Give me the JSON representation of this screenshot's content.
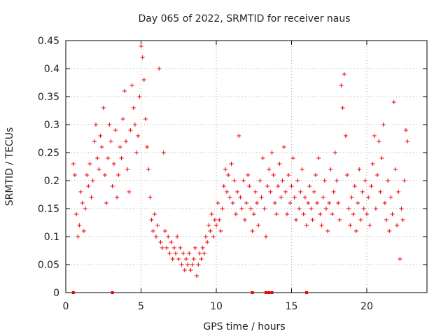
{
  "chart_data": {
    "type": "scatter",
    "title": "Day 065 of 2022, SRMTID for receiver naus",
    "xlabel": "GPS time / hours",
    "ylabel": "SRMTID / TECUs",
    "xlim": [
      0,
      24
    ],
    "ylim": [
      0,
      0.45
    ],
    "x_ticks": [
      0,
      5,
      10,
      15,
      20
    ],
    "x_tick_labels": [
      "0",
      "5",
      "10",
      "15",
      "20"
    ],
    "y_ticks": [
      0,
      0.05,
      0.1,
      0.15,
      0.2,
      0.25,
      0.3,
      0.35,
      0.4,
      0.45
    ],
    "y_tick_labels": [
      "0",
      "0.05",
      "0.1",
      "0.15",
      "0.2",
      "0.25",
      "0.3",
      "0.35",
      "0.4",
      "0.45"
    ],
    "grid": true,
    "marker": "+",
    "color": "#ee0000",
    "series": [
      {
        "name": "SRMTID",
        "points": [
          [
            0.5,
            0.23
          ],
          [
            0.6,
            0.21
          ],
          [
            0.7,
            0.14
          ],
          [
            0.8,
            0.1
          ],
          [
            0.9,
            0.12
          ],
          [
            1.0,
            0.18
          ],
          [
            1.1,
            0.16
          ],
          [
            1.2,
            0.11
          ],
          [
            1.3,
            0.15
          ],
          [
            1.4,
            0.21
          ],
          [
            1.5,
            0.19
          ],
          [
            1.6,
            0.23
          ],
          [
            1.7,
            0.17
          ],
          [
            1.8,
            0.2
          ],
          [
            1.9,
            0.27
          ],
          [
            2.0,
            0.3
          ],
          [
            2.1,
            0.24
          ],
          [
            2.2,
            0.22
          ],
          [
            2.3,
            0.28
          ],
          [
            2.4,
            0.26
          ],
          [
            2.5,
            0.33
          ],
          [
            2.6,
            0.21
          ],
          [
            2.7,
            0.16
          ],
          [
            2.8,
            0.24
          ],
          [
            2.9,
            0.3
          ],
          [
            3.0,
            0.27
          ],
          [
            3.1,
            0.19
          ],
          [
            3.2,
            0.23
          ],
          [
            3.3,
            0.29
          ],
          [
            3.4,
            0.17
          ],
          [
            3.5,
            0.21
          ],
          [
            3.6,
            0.26
          ],
          [
            3.7,
            0.24
          ],
          [
            3.8,
            0.31
          ],
          [
            3.9,
            0.36
          ],
          [
            4.0,
            0.27
          ],
          [
            4.1,
            0.22
          ],
          [
            4.2,
            0.18
          ],
          [
            4.3,
            0.29
          ],
          [
            4.4,
            0.37
          ],
          [
            4.5,
            0.33
          ],
          [
            4.6,
            0.3
          ],
          [
            4.7,
            0.25
          ],
          [
            4.8,
            0.28
          ],
          [
            4.9,
            0.35
          ],
          [
            5.0,
            0.44
          ],
          [
            5.1,
            0.42
          ],
          [
            5.2,
            0.38
          ],
          [
            5.3,
            0.31
          ],
          [
            5.4,
            0.26
          ],
          [
            5.5,
            0.22
          ],
          [
            5.6,
            0.17
          ],
          [
            5.7,
            0.13
          ],
          [
            5.8,
            0.11
          ],
          [
            5.9,
            0.14
          ],
          [
            6.0,
            0.1
          ],
          [
            6.1,
            0.12
          ],
          [
            6.2,
            0.4
          ],
          [
            6.3,
            0.09
          ],
          [
            6.4,
            0.08
          ],
          [
            6.5,
            0.25
          ],
          [
            6.6,
            0.11
          ],
          [
            6.7,
            0.08
          ],
          [
            6.8,
            0.1
          ],
          [
            6.9,
            0.07
          ],
          [
            7.0,
            0.09
          ],
          [
            7.1,
            0.06
          ],
          [
            7.2,
            0.08
          ],
          [
            7.3,
            0.07
          ],
          [
            7.4,
            0.1
          ],
          [
            7.5,
            0.06
          ],
          [
            7.6,
            0.08
          ],
          [
            7.7,
            0.05
          ],
          [
            7.8,
            0.07
          ],
          [
            7.9,
            0.04
          ],
          [
            8.0,
            0.06
          ],
          [
            8.1,
            0.05
          ],
          [
            8.2,
            0.07
          ],
          [
            8.3,
            0.04
          ],
          [
            8.4,
            0.05
          ],
          [
            8.5,
            0.06
          ],
          [
            8.6,
            0.08
          ],
          [
            8.7,
            0.03
          ],
          [
            8.8,
            0.05
          ],
          [
            8.9,
            0.07
          ],
          [
            9.0,
            0.06
          ],
          [
            9.1,
            0.08
          ],
          [
            9.2,
            0.07
          ],
          [
            9.3,
            0.1
          ],
          [
            9.4,
            0.09
          ],
          [
            9.5,
            0.12
          ],
          [
            9.6,
            0.11
          ],
          [
            9.7,
            0.14
          ],
          [
            9.8,
            0.1
          ],
          [
            9.9,
            0.13
          ],
          [
            10.0,
            0.12
          ],
          [
            10.1,
            0.16
          ],
          [
            10.2,
            0.13
          ],
          [
            10.3,
            0.11
          ],
          [
            10.4,
            0.15
          ],
          [
            10.5,
            0.19
          ],
          [
            10.6,
            0.22
          ],
          [
            10.7,
            0.18
          ],
          [
            10.8,
            0.21
          ],
          [
            10.9,
            0.17
          ],
          [
            11.0,
            0.23
          ],
          [
            11.1,
            0.16
          ],
          [
            11.2,
            0.2
          ],
          [
            11.3,
            0.14
          ],
          [
            11.4,
            0.18
          ],
          [
            11.5,
            0.28
          ],
          [
            11.6,
            0.17
          ],
          [
            11.7,
            0.15
          ],
          [
            11.8,
            0.2
          ],
          [
            11.9,
            0.13
          ],
          [
            12.0,
            0.16
          ],
          [
            12.1,
            0.21
          ],
          [
            12.2,
            0.19
          ],
          [
            12.3,
            0.15
          ],
          [
            12.4,
            0.11
          ],
          [
            12.5,
            0.14
          ],
          [
            12.6,
            0.18
          ],
          [
            12.7,
            0.16
          ],
          [
            12.8,
            0.12
          ],
          [
            12.9,
            0.2
          ],
          [
            13.0,
            0.17
          ],
          [
            13.1,
            0.24
          ],
          [
            13.2,
            0.15
          ],
          [
            13.3,
            0.1
          ],
          [
            13.4,
            0.19
          ],
          [
            13.5,
            0.22
          ],
          [
            13.6,
            0.18
          ],
          [
            13.7,
            0.25
          ],
          [
            13.8,
            0.21
          ],
          [
            13.9,
            0.16
          ],
          [
            14.0,
            0.14
          ],
          [
            14.1,
            0.19
          ],
          [
            14.2,
            0.23
          ],
          [
            14.3,
            0.17
          ],
          [
            14.4,
            0.2
          ],
          [
            14.5,
            0.26
          ],
          [
            14.6,
            0.18
          ],
          [
            14.7,
            0.14
          ],
          [
            14.8,
            0.21
          ],
          [
            14.9,
            0.16
          ],
          [
            15.0,
            0.19
          ],
          [
            15.1,
            0.24
          ],
          [
            15.2,
            0.17
          ],
          [
            15.3,
            0.13
          ],
          [
            15.4,
            0.2
          ],
          [
            15.5,
            0.15
          ],
          [
            15.6,
            0.18
          ],
          [
            15.7,
            0.22
          ],
          [
            15.8,
            0.14
          ],
          [
            15.9,
            0.17
          ],
          [
            16.0,
            0.12
          ],
          [
            16.1,
            0.16
          ],
          [
            16.2,
            0.19
          ],
          [
            16.3,
            0.15
          ],
          [
            16.4,
            0.13
          ],
          [
            16.5,
            0.18
          ],
          [
            16.6,
            0.21
          ],
          [
            16.7,
            0.16
          ],
          [
            16.8,
            0.24
          ],
          [
            16.9,
            0.14
          ],
          [
            17.0,
            0.12
          ],
          [
            17.1,
            0.17
          ],
          [
            17.2,
            0.2
          ],
          [
            17.3,
            0.15
          ],
          [
            17.4,
            0.11
          ],
          [
            17.5,
            0.16
          ],
          [
            17.6,
            0.22
          ],
          [
            17.7,
            0.14
          ],
          [
            17.8,
            0.18
          ],
          [
            17.9,
            0.25
          ],
          [
            18.0,
            0.2
          ],
          [
            18.1,
            0.16
          ],
          [
            18.2,
            0.13
          ],
          [
            18.3,
            0.37
          ],
          [
            18.4,
            0.33
          ],
          [
            18.5,
            0.39
          ],
          [
            18.6,
            0.28
          ],
          [
            18.7,
            0.21
          ],
          [
            18.8,
            0.15
          ],
          [
            18.9,
            0.12
          ],
          [
            19.0,
            0.17
          ],
          [
            19.1,
            0.14
          ],
          [
            19.2,
            0.19
          ],
          [
            19.3,
            0.11
          ],
          [
            19.4,
            0.16
          ],
          [
            19.5,
            0.22
          ],
          [
            19.6,
            0.13
          ],
          [
            19.7,
            0.18
          ],
          [
            19.8,
            0.15
          ],
          [
            19.9,
            0.2
          ],
          [
            20.0,
            0.14
          ],
          [
            20.1,
            0.17
          ],
          [
            20.2,
            0.12
          ],
          [
            20.3,
            0.19
          ],
          [
            20.4,
            0.23
          ],
          [
            20.5,
            0.28
          ],
          [
            20.6,
            0.15
          ],
          [
            20.7,
            0.21
          ],
          [
            20.8,
            0.27
          ],
          [
            20.9,
            0.18
          ],
          [
            21.0,
            0.24
          ],
          [
            21.1,
            0.3
          ],
          [
            21.2,
            0.16
          ],
          [
            21.3,
            0.13
          ],
          [
            21.4,
            0.2
          ],
          [
            21.5,
            0.11
          ],
          [
            21.6,
            0.17
          ],
          [
            21.7,
            0.14
          ],
          [
            21.8,
            0.34
          ],
          [
            21.9,
            0.22
          ],
          [
            22.0,
            0.12
          ],
          [
            22.1,
            0.18
          ],
          [
            22.2,
            0.06
          ],
          [
            22.3,
            0.15
          ],
          [
            22.4,
            0.13
          ],
          [
            22.5,
            0.2
          ],
          [
            22.6,
            0.29
          ],
          [
            22.7,
            0.27
          ]
        ]
      }
    ],
    "zero_value_points": [
      [
        0.5,
        0
      ],
      [
        3.1,
        0
      ],
      [
        12.4,
        0
      ],
      [
        13.3,
        0
      ],
      [
        13.5,
        0
      ],
      [
        13.7,
        0
      ],
      [
        16.0,
        0
      ]
    ]
  }
}
